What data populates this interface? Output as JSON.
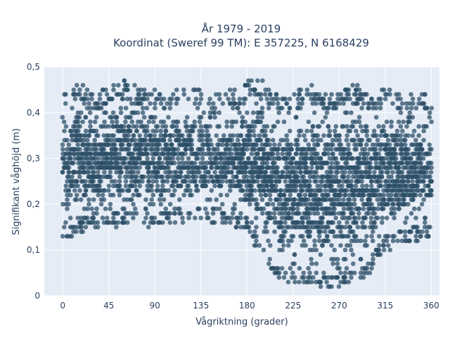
{
  "chart_data": {
    "type": "scatter",
    "title_line1": "År 1979 - 2019",
    "title_line2": "Koordinat (Sweref 99 TM): E 357225, N 6168429",
    "xlabel": "Vågriktning (grader)",
    "ylabel": "Signifikant våghöjd (m)",
    "xlim": [
      -18,
      368
    ],
    "ylim": [
      0,
      0.5
    ],
    "x_ticks": [
      0,
      45,
      90,
      135,
      180,
      225,
      270,
      315,
      360
    ],
    "y_ticks": [
      0,
      0.1,
      0.2,
      0.3,
      0.4,
      0.5
    ],
    "y_tick_labels": [
      "0",
      "0,1",
      "0,2",
      "0,3",
      "0,4",
      "0,5"
    ],
    "grid": true,
    "marker_color": "#2d5068",
    "background_color": "#e5ecf6",
    "grid_color": "#ffffff",
    "density_profile": [
      {
        "x": 0,
        "lo": 0.11,
        "hi": 0.44,
        "n": 80
      },
      {
        "x": 15,
        "lo": 0.14,
        "hi": 0.47,
        "n": 140
      },
      {
        "x": 30,
        "lo": 0.15,
        "hi": 0.44,
        "n": 130
      },
      {
        "x": 45,
        "lo": 0.14,
        "hi": 0.46,
        "n": 120
      },
      {
        "x": 60,
        "lo": 0.15,
        "hi": 0.47,
        "n": 130
      },
      {
        "x": 75,
        "lo": 0.15,
        "hi": 0.45,
        "n": 120
      },
      {
        "x": 90,
        "lo": 0.15,
        "hi": 0.45,
        "n": 120
      },
      {
        "x": 105,
        "lo": 0.16,
        "hi": 0.45,
        "n": 110
      },
      {
        "x": 120,
        "lo": 0.16,
        "hi": 0.45,
        "n": 100
      },
      {
        "x": 135,
        "lo": 0.16,
        "hi": 0.46,
        "n": 90
      },
      {
        "x": 150,
        "lo": 0.16,
        "hi": 0.44,
        "n": 90
      },
      {
        "x": 165,
        "lo": 0.15,
        "hi": 0.45,
        "n": 110
      },
      {
        "x": 180,
        "lo": 0.14,
        "hi": 0.47,
        "n": 150
      },
      {
        "x": 195,
        "lo": 0.08,
        "hi": 0.47,
        "n": 150
      },
      {
        "x": 210,
        "lo": 0.04,
        "hi": 0.44,
        "n": 140
      },
      {
        "x": 225,
        "lo": 0.03,
        "hi": 0.44,
        "n": 150
      },
      {
        "x": 240,
        "lo": 0.02,
        "hi": 0.47,
        "n": 160
      },
      {
        "x": 255,
        "lo": 0.02,
        "hi": 0.44,
        "n": 160
      },
      {
        "x": 270,
        "lo": 0.02,
        "hi": 0.45,
        "n": 170
      },
      {
        "x": 285,
        "lo": 0.02,
        "hi": 0.46,
        "n": 170
      },
      {
        "x": 300,
        "lo": 0.05,
        "hi": 0.44,
        "n": 150
      },
      {
        "x": 315,
        "lo": 0.1,
        "hi": 0.46,
        "n": 140
      },
      {
        "x": 330,
        "lo": 0.11,
        "hi": 0.44,
        "n": 140
      },
      {
        "x": 345,
        "lo": 0.12,
        "hi": 0.44,
        "n": 140
      },
      {
        "x": 360,
        "lo": 0.12,
        "hi": 0.45,
        "n": 100
      }
    ]
  }
}
